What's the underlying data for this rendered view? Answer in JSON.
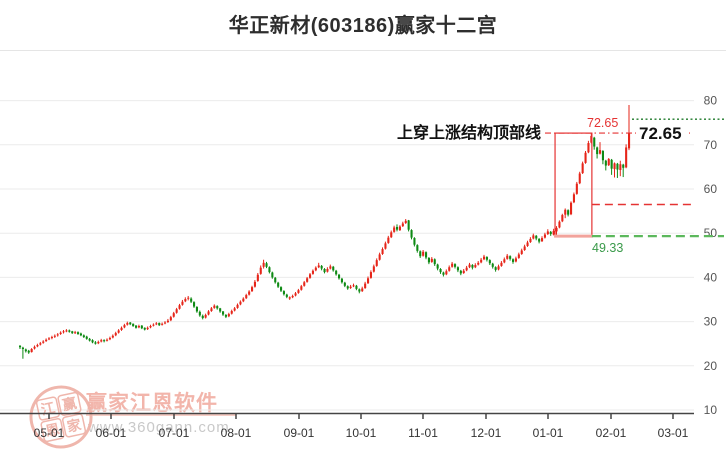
{
  "title": "华正新材(603186)赢家十二宫",
  "watermark": {
    "brand": "赢家江恩软件",
    "url": "www.360gann.com",
    "stamp_chars": [
      "江",
      "赢",
      "恩",
      "家"
    ],
    "stamp_color": "#efb3a8"
  },
  "colors": {
    "up": "#e62519",
    "down": "#0e8a14",
    "grid": "#ebebeb",
    "axis": "#444444",
    "axis_label": "#333333",
    "y_label": "#555555",
    "structure_red": "#e53333",
    "structure_pink": "#f2a39c",
    "light_green_dash": "#5cb85c",
    "dark_green_dot": "#1e7a2a",
    "annotation_text": "#111111"
  },
  "chart_data": {
    "type": "candlestick",
    "title": "华正新材(603186)赢家十二宫",
    "ohlc_columns": [
      "open",
      "high",
      "low",
      "close"
    ],
    "ylim": [
      10,
      90
    ],
    "grid": true,
    "y_axis": {
      "side": "right",
      "ticks": [
        80,
        70,
        60,
        50,
        40,
        30,
        20,
        10
      ]
    },
    "x_axis": {
      "labels": [
        "05-01",
        "06-01",
        "07-01",
        "08-01",
        "09-01",
        "10-01",
        "11-01",
        "12-01",
        "01-01",
        "02-01",
        "03-01"
      ]
    },
    "annotations": {
      "note": {
        "text": "上穿上涨结构顶部线"
      },
      "box": {
        "start_index": 184.5,
        "end_index": 197.2,
        "top": 72.65,
        "bottom": 49.33
      },
      "top_line": {
        "value": 72.65,
        "label": "72.65",
        "style": "dashdot",
        "color": "#e53333"
      },
      "current_price_label": {
        "text": "72.65"
      },
      "mid_line": {
        "value": 56.5,
        "style": "dashed",
        "color": "#e53333"
      },
      "bottom_line": {
        "value": 49.33,
        "label": "49.33",
        "style": "dashed",
        "color": "#5cb85c",
        "label_color": "#3a9a4a"
      },
      "new_top_line": {
        "value": 75.8,
        "style": "dotted",
        "color": "#1e7a2a"
      }
    },
    "candles": [
      [
        24.5,
        24.7,
        23.8,
        24.2
      ],
      [
        24.1,
        24.3,
        21.6,
        23.8
      ],
      [
        23.7,
        23.9,
        23.0,
        23.3
      ],
      [
        23.4,
        23.6,
        22.7,
        23.0
      ],
      [
        23.1,
        24.0,
        23.0,
        23.8
      ],
      [
        23.9,
        24.6,
        23.7,
        24.3
      ],
      [
        24.4,
        25.0,
        24.2,
        24.7
      ],
      [
        24.8,
        25.4,
        24.6,
        25.1
      ],
      [
        25.2,
        25.8,
        25.0,
        25.5
      ],
      [
        25.6,
        26.2,
        25.4,
        25.9
      ],
      [
        26.0,
        26.5,
        25.8,
        26.2
      ],
      [
        26.3,
        26.8,
        26.0,
        26.5
      ],
      [
        26.6,
        27.1,
        26.3,
        26.8
      ],
      [
        26.9,
        27.4,
        26.6,
        27.1
      ],
      [
        27.2,
        27.8,
        27.0,
        27.5
      ],
      [
        27.6,
        28.1,
        27.3,
        27.8
      ],
      [
        27.9,
        28.3,
        27.6,
        28.0
      ],
      [
        28.0,
        28.2,
        27.5,
        27.7
      ],
      [
        27.8,
        27.9,
        27.2,
        27.4
      ],
      [
        27.4,
        27.9,
        27.2,
        27.6
      ],
      [
        27.6,
        27.8,
        27.0,
        27.2
      ],
      [
        27.3,
        27.5,
        26.7,
        26.9
      ],
      [
        26.9,
        27.1,
        26.3,
        26.5
      ],
      [
        26.6,
        26.8,
        25.9,
        26.1
      ],
      [
        26.1,
        26.3,
        25.5,
        25.7
      ],
      [
        25.8,
        26.0,
        25.1,
        25.3
      ],
      [
        25.3,
        25.6,
        24.8,
        25.0
      ],
      [
        25.1,
        25.7,
        24.9,
        25.4
      ],
      [
        25.5,
        26.1,
        25.3,
        25.8
      ],
      [
        25.8,
        26.0,
        25.3,
        25.6
      ],
      [
        25.7,
        26.2,
        25.5,
        25.9
      ],
      [
        26.0,
        26.6,
        25.8,
        26.3
      ],
      [
        26.4,
        27.1,
        26.2,
        26.8
      ],
      [
        26.9,
        27.7,
        26.7,
        27.4
      ],
      [
        27.5,
        28.3,
        27.3,
        28.0
      ],
      [
        28.1,
        28.9,
        27.9,
        28.6
      ],
      [
        28.7,
        29.5,
        28.5,
        29.2
      ],
      [
        29.3,
        30.0,
        29.1,
        29.7
      ],
      [
        29.8,
        29.9,
        29.2,
        29.4
      ],
      [
        29.5,
        29.6,
        28.8,
        29.0
      ],
      [
        29.1,
        29.2,
        28.4,
        28.6
      ],
      [
        28.7,
        29.3,
        28.5,
        29.0
      ],
      [
        29.1,
        29.2,
        28.3,
        28.5
      ],
      [
        28.6,
        28.7,
        28.0,
        28.2
      ],
      [
        28.3,
        28.9,
        28.1,
        28.6
      ],
      [
        28.7,
        29.3,
        28.5,
        29.0
      ],
      [
        29.1,
        29.6,
        28.9,
        29.3
      ],
      [
        29.4,
        29.9,
        29.2,
        29.6
      ],
      [
        29.7,
        29.8,
        29.0,
        29.2
      ],
      [
        29.3,
        29.8,
        29.1,
        29.5
      ],
      [
        29.6,
        30.1,
        29.4,
        29.8
      ],
      [
        29.9,
        30.6,
        29.7,
        30.2
      ],
      [
        30.3,
        31.3,
        30.1,
        31.0
      ],
      [
        31.1,
        32.2,
        30.9,
        31.9
      ],
      [
        32.0,
        33.1,
        31.8,
        32.8
      ],
      [
        32.9,
        34.0,
        32.7,
        33.7
      ],
      [
        33.8,
        34.9,
        33.6,
        34.5
      ],
      [
        34.6,
        35.5,
        34.4,
        35.1
      ],
      [
        35.2,
        35.8,
        34.8,
        35.4
      ],
      [
        35.2,
        35.5,
        34.2,
        34.5
      ],
      [
        34.4,
        34.6,
        33.1,
        33.4
      ],
      [
        33.3,
        33.5,
        32.0,
        32.3
      ],
      [
        32.2,
        32.5,
        31.1,
        31.4
      ],
      [
        31.3,
        31.6,
        30.5,
        30.8
      ],
      [
        30.9,
        31.8,
        30.7,
        31.5
      ],
      [
        31.6,
        32.6,
        31.4,
        32.3
      ],
      [
        32.4,
        33.3,
        32.2,
        33.0
      ],
      [
        33.1,
        33.9,
        32.9,
        33.6
      ],
      [
        33.5,
        33.7,
        32.7,
        33.0
      ],
      [
        33.0,
        33.1,
        32.0,
        32.3
      ],
      [
        32.3,
        32.4,
        31.3,
        31.6
      ],
      [
        31.5,
        31.7,
        30.8,
        31.1
      ],
      [
        31.2,
        32.0,
        31.0,
        31.7
      ],
      [
        31.8,
        32.7,
        31.6,
        32.4
      ],
      [
        32.5,
        33.3,
        32.3,
        33.0
      ],
      [
        33.1,
        34.1,
        32.9,
        33.8
      ],
      [
        33.9,
        34.8,
        33.7,
        34.5
      ],
      [
        34.6,
        35.5,
        34.4,
        35.2
      ],
      [
        35.3,
        36.3,
        35.1,
        36.0
      ],
      [
        36.1,
        37.1,
        35.9,
        36.8
      ],
      [
        36.9,
        38.1,
        36.7,
        37.8
      ],
      [
        37.9,
        39.4,
        37.7,
        39.0
      ],
      [
        39.2,
        41.0,
        39.0,
        40.6
      ],
      [
        40.8,
        42.7,
        40.6,
        42.2
      ],
      [
        42.4,
        44.0,
        42.0,
        43.3
      ],
      [
        43.2,
        43.5,
        42.1,
        42.4
      ],
      [
        42.3,
        42.5,
        40.9,
        41.2
      ],
      [
        41.1,
        41.3,
        39.7,
        40.0
      ],
      [
        39.9,
        40.1,
        38.6,
        38.9
      ],
      [
        38.8,
        39.0,
        37.6,
        37.9
      ],
      [
        37.8,
        38.0,
        36.7,
        37.0
      ],
      [
        36.9,
        37.1,
        35.9,
        36.2
      ],
      [
        36.1,
        36.3,
        35.3,
        35.6
      ],
      [
        35.2,
        35.7,
        34.9,
        35.5
      ],
      [
        35.5,
        36.1,
        35.3,
        35.8
      ],
      [
        35.9,
        36.7,
        35.7,
        36.4
      ],
      [
        36.5,
        37.4,
        36.3,
        37.1
      ],
      [
        37.2,
        38.3,
        37.0,
        38.0
      ],
      [
        38.1,
        39.2,
        37.9,
        38.9
      ],
      [
        39.0,
        40.1,
        38.8,
        39.8
      ],
      [
        39.9,
        41.0,
        39.7,
        40.7
      ],
      [
        40.8,
        41.8,
        40.6,
        41.5
      ],
      [
        41.6,
        42.5,
        41.4,
        42.2
      ],
      [
        42.3,
        43.3,
        42.1,
        42.7
      ],
      [
        42.6,
        42.8,
        41.6,
        42.0
      ],
      [
        41.9,
        42.1,
        40.9,
        41.2
      ],
      [
        41.3,
        42.3,
        41.1,
        41.9
      ],
      [
        42.0,
        42.9,
        41.8,
        42.5
      ],
      [
        42.4,
        42.6,
        41.3,
        41.6
      ],
      [
        41.5,
        41.7,
        40.4,
        40.7
      ],
      [
        40.6,
        40.8,
        39.5,
        39.8
      ],
      [
        39.7,
        39.9,
        38.6,
        38.9
      ],
      [
        38.8,
        39.0,
        37.8,
        38.1
      ],
      [
        38.0,
        38.2,
        37.2,
        37.5
      ],
      [
        37.6,
        38.3,
        37.4,
        37.9
      ],
      [
        38.0,
        38.6,
        37.8,
        38.2
      ],
      [
        38.1,
        38.3,
        37.1,
        37.4
      ],
      [
        37.3,
        37.5,
        36.4,
        36.8
      ],
      [
        36.9,
        37.9,
        36.7,
        37.5
      ],
      [
        37.6,
        39.0,
        37.4,
        38.6
      ],
      [
        38.7,
        40.2,
        38.5,
        39.8
      ],
      [
        39.9,
        41.6,
        39.7,
        41.2
      ],
      [
        41.3,
        42.9,
        41.1,
        42.5
      ],
      [
        42.6,
        44.3,
        42.4,
        43.9
      ],
      [
        44.0,
        45.6,
        43.8,
        45.2
      ],
      [
        45.3,
        46.8,
        45.1,
        46.4
      ],
      [
        46.5,
        48.1,
        46.3,
        47.7
      ],
      [
        47.8,
        49.4,
        47.6,
        49.0
      ],
      [
        49.1,
        50.6,
        48.9,
        50.2
      ],
      [
        50.3,
        51.7,
        50.1,
        51.3
      ],
      [
        51.4,
        52.0,
        50.4,
        50.8
      ],
      [
        50.7,
        51.8,
        50.5,
        51.5
      ],
      [
        51.6,
        52.6,
        51.4,
        52.2
      ],
      [
        52.3,
        53.2,
        52.1,
        52.8
      ],
      [
        52.9,
        53.0,
        50.4,
        50.8
      ],
      [
        50.7,
        50.9,
        48.6,
        49.0
      ],
      [
        48.9,
        49.1,
        47.0,
        47.4
      ],
      [
        47.3,
        47.5,
        45.6,
        46.0
      ],
      [
        45.9,
        46.1,
        44.4,
        44.8
      ],
      [
        44.9,
        46.2,
        44.7,
        45.8
      ],
      [
        45.7,
        45.9,
        44.1,
        44.5
      ],
      [
        44.4,
        44.6,
        43.0,
        43.4
      ],
      [
        43.5,
        44.6,
        43.3,
        44.2
      ],
      [
        44.1,
        44.3,
        42.6,
        43.0
      ],
      [
        42.9,
        43.1,
        41.6,
        42.0
      ],
      [
        41.9,
        42.1,
        40.8,
        41.2
      ],
      [
        41.1,
        41.3,
        40.2,
        40.6
      ],
      [
        40.7,
        41.8,
        40.5,
        41.4
      ],
      [
        41.5,
        42.7,
        41.3,
        42.3
      ],
      [
        42.4,
        43.5,
        42.2,
        43.1
      ],
      [
        43.0,
        43.2,
        42.0,
        42.4
      ],
      [
        42.3,
        42.5,
        41.2,
        41.6
      ],
      [
        41.5,
        41.7,
        40.5,
        40.9
      ],
      [
        41.0,
        41.9,
        40.8,
        41.5
      ],
      [
        41.6,
        42.6,
        41.4,
        42.2
      ],
      [
        42.3,
        43.3,
        42.1,
        42.9
      ],
      [
        42.8,
        43.0,
        41.8,
        42.2
      ],
      [
        42.3,
        43.2,
        42.1,
        42.8
      ],
      [
        42.9,
        43.7,
        42.7,
        43.3
      ],
      [
        43.4,
        44.4,
        43.2,
        44.0
      ],
      [
        44.1,
        45.1,
        43.9,
        44.7
      ],
      [
        44.6,
        44.8,
        43.6,
        44.0
      ],
      [
        43.9,
        44.1,
        42.8,
        43.2
      ],
      [
        43.1,
        43.3,
        42.0,
        42.4
      ],
      [
        42.3,
        42.5,
        41.3,
        41.7
      ],
      [
        41.8,
        42.9,
        41.6,
        42.5
      ],
      [
        42.6,
        43.7,
        42.4,
        43.3
      ],
      [
        43.4,
        44.5,
        43.2,
        44.1
      ],
      [
        44.2,
        45.3,
        44.0,
        44.9
      ],
      [
        44.8,
        45.0,
        43.8,
        44.2
      ],
      [
        44.1,
        44.3,
        43.1,
        43.5
      ],
      [
        43.6,
        44.7,
        43.4,
        44.3
      ],
      [
        44.4,
        45.6,
        44.2,
        45.2
      ],
      [
        45.3,
        46.5,
        45.1,
        46.1
      ],
      [
        46.2,
        47.4,
        46.0,
        47.0
      ],
      [
        47.1,
        48.3,
        46.9,
        47.9
      ],
      [
        48.0,
        49.1,
        47.8,
        48.7
      ],
      [
        48.8,
        49.9,
        48.6,
        49.5
      ],
      [
        49.4,
        49.6,
        48.4,
        48.8
      ],
      [
        48.7,
        48.9,
        47.7,
        48.1
      ],
      [
        48.2,
        49.3,
        48.0,
        48.9
      ],
      [
        49.0,
        50.1,
        48.8,
        49.7
      ],
      [
        49.8,
        50.9,
        49.6,
        50.4
      ],
      [
        50.3,
        50.5,
        49.4,
        49.8
      ],
      [
        49.7,
        51.0,
        49.5,
        50.5
      ],
      [
        50.4,
        51.6,
        49.33,
        51.2
      ],
      [
        51.3,
        52.9,
        51.1,
        52.6
      ],
      [
        52.7,
        54.4,
        52.5,
        54.1
      ],
      [
        54.2,
        55.6,
        53.4,
        55.3
      ],
      [
        55.2,
        55.4,
        53.8,
        54.2
      ],
      [
        54.3,
        57.2,
        54.1,
        56.9
      ],
      [
        57.0,
        59.2,
        56.8,
        58.8
      ],
      [
        58.9,
        61.6,
        58.7,
        61.2
      ],
      [
        61.3,
        63.9,
        61.1,
        63.5
      ],
      [
        63.6,
        66.2,
        63.4,
        65.8
      ],
      [
        65.9,
        68.6,
        65.7,
        68.2
      ],
      [
        68.3,
        70.9,
        68.1,
        70.4
      ],
      [
        70.5,
        72.65,
        70.3,
        72.0
      ],
      [
        71.6,
        71.8,
        68.9,
        69.6
      ],
      [
        69.4,
        69.6,
        66.9,
        67.9
      ],
      [
        68.0,
        70.6,
        67.8,
        68.8
      ],
      [
        68.6,
        68.8,
        65.6,
        66.5
      ],
      [
        66.4,
        66.6,
        64.2,
        65.3
      ],
      [
        65.4,
        67.0,
        65.2,
        66.8
      ],
      [
        66.6,
        66.8,
        63.2,
        64.6
      ],
      [
        64.5,
        66.0,
        62.6,
        65.8
      ],
      [
        65.7,
        65.9,
        62.5,
        64.4
      ],
      [
        64.3,
        66.4,
        62.9,
        65.6
      ],
      [
        65.5,
        65.7,
        62.7,
        64.8
      ],
      [
        64.9,
        70.1,
        64.7,
        69.4
      ],
      [
        69.2,
        79.0,
        68.8,
        72.65
      ]
    ]
  }
}
